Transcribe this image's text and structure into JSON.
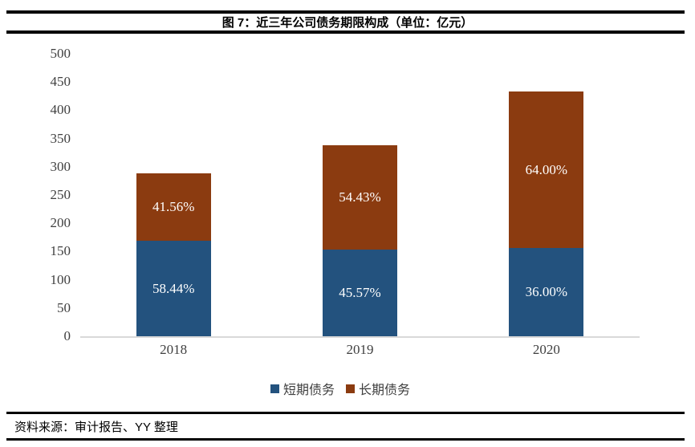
{
  "header": {
    "title": "图 7：近三年公司债务期限构成（单位：亿元）"
  },
  "footer": {
    "source": "资料来源：审计报告、YY 整理"
  },
  "colors": {
    "short_term_blue": "#23527E",
    "long_term_brown": "#8B3B10",
    "axis_line": "#D9D9D9",
    "axis_text": "#3F3F3F",
    "rule_black": "#000000",
    "bar_label_text": "#FFFFFF"
  },
  "chart_data": {
    "type": "bar",
    "stacked": true,
    "title": "图 7：近三年公司债务期限构成（单位：亿元）",
    "unit": "亿元",
    "categories": [
      "2018",
      "2019",
      "2020"
    ],
    "series": [
      {
        "name": "短期债务",
        "color": "#23527E",
        "values": [
          169,
          154,
          156
        ],
        "percent_labels": [
          "58.44%",
          "45.57%",
          "36.00%"
        ]
      },
      {
        "name": "长期债务",
        "color": "#8B3B10",
        "values": [
          120,
          184,
          277
        ],
        "percent_labels": [
          "41.56%",
          "54.43%",
          "64.00%"
        ]
      }
    ],
    "totals": [
      289,
      338,
      433
    ],
    "xlabel": "",
    "ylabel": "",
    "ylim": [
      0,
      500
    ],
    "y_ticks": [
      0,
      50,
      100,
      150,
      200,
      250,
      300,
      350,
      400,
      450,
      500
    ],
    "grid": false,
    "legend_position": "bottom"
  }
}
